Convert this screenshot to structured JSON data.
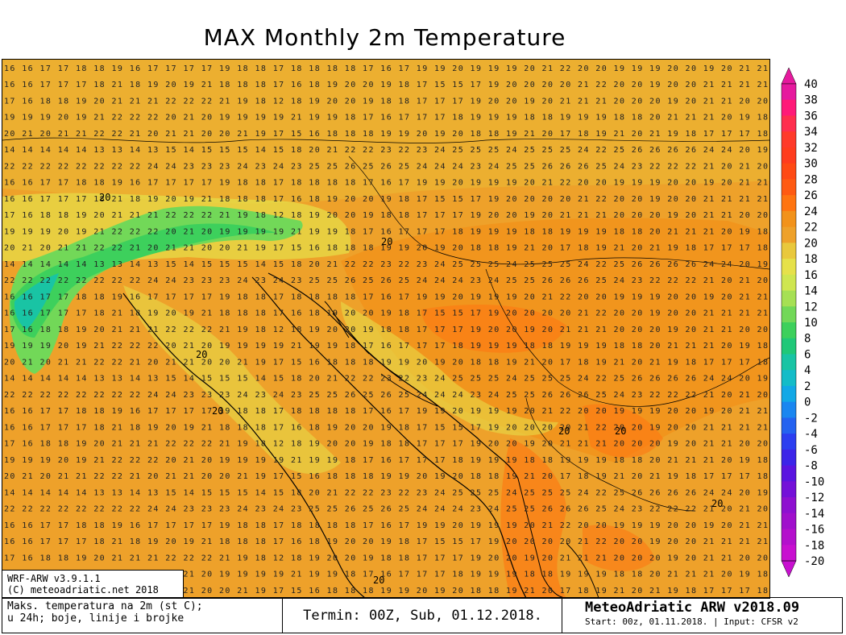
{
  "title": "MAX Monthly 2m Temperature",
  "model_box": {
    "line1": "WRF-ARW v3.9.1.1",
    "line2": "(C) meteoadriatic.net 2018"
  },
  "footer": {
    "description_line1": "Maks. temperatura na 2m (st C);",
    "description_line2": "u 24h; boje, linije i brojke",
    "termin": "Termin: 00Z, Sub, 01.12.2018.",
    "brand": "MeteoAdriatic ARW v2018.09",
    "start": "Start: 00z, 01.11.2018. | Input: CFSR v2"
  },
  "colorbar": {
    "levels": [
      40,
      38,
      36,
      34,
      32,
      30,
      28,
      26,
      24,
      22,
      20,
      18,
      16,
      14,
      12,
      10,
      8,
      6,
      4,
      2,
      0,
      -2,
      -4,
      -6,
      -8,
      -10,
      -12,
      -14,
      -16,
      -18,
      -20
    ],
    "colors": [
      "#e61a9e",
      "#ff1a78",
      "#ff2e4e",
      "#ff3a2a",
      "#ff3c1e",
      "#ff4a14",
      "#ff5a12",
      "#ff7410",
      "#f2921a",
      "#eea12a",
      "#e9c83c",
      "#e6e14a",
      "#cfe650",
      "#a6e054",
      "#72d858",
      "#3dd05c",
      "#20c878",
      "#19c4a4",
      "#14bcc8",
      "#12a8e6",
      "#1a86f0",
      "#2462f0",
      "#2c3ef0",
      "#3c24e8",
      "#5a14e0",
      "#7410d8",
      "#8e10d0",
      "#a010cc",
      "#b410cc",
      "#c810d0"
    ]
  },
  "map": {
    "grid_values_visible": [
      "16 16 17 17 18 18 19 16 17 17 17 17 19 18 18 17 18 18 18 18 17 16 17 19 19 20 19 19 19 20 21 22 20 20 19 19 19 20 20 19 20 21 21",
      "16 16 17 17 17 18 21 18 19 20 19 21 18 18 18 17 16 18 19 20 20 19 18 17 15 15 17 19 20 20 20 20 21 22 20 20 19 20 20 21 21 21 21",
      "17 16 18 18 19 20 21 21 21 22 22 22 21 19 18 12 18 19 20 20 19 18 18 17 17 17 19 20 20 19 20 21 21 21 20 20 20 19 20 21 21 20 20",
      "19 19 19 20 19 21 22 22 22 20 21 20 19 19 19 19 21 19 19 18 17 16 17 17 17 18 19 19 19 18 18 19 19 19 18 18 20 21 21 21 20 19 18",
      "20 21 20 21 21 22 22 21 20 21 21 20 20 21 19 17 15 16 18 18 18 19 19 20 19 20 18 18 19 21 20 17 18 19 21 20 21 19 18 17 17 17 18",
      "14 14 14 14 14 13 13 14 13 15 14 15 15 15 14 15 18 20 21 22 22 23 22 23 24 25 25 25 24 25 25 25 24 22 25 26 26 26 26 24 24 20 19",
      "22 22 22 22 22 22 22 22 24 24 23 23 23 24 23 24 23 25 25 26 25 26 25 24 24 24 23 24 25 25 26 26 26 25 24 23 22 22 22 21 20 21 20"
    ],
    "contour_label": "20"
  }
}
